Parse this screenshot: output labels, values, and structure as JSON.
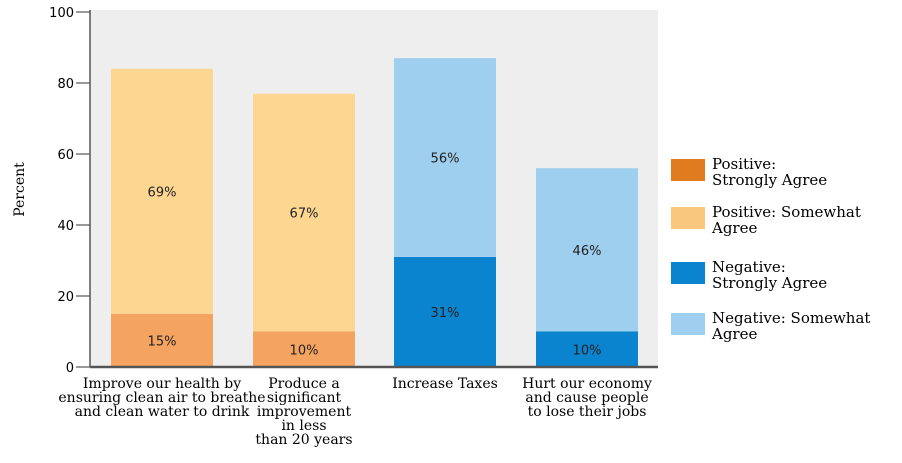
{
  "chart_data": {
    "type": "bar",
    "stacked": true,
    "ylabel": "Percent",
    "ylim": [
      0,
      100
    ],
    "yticks": [
      0,
      20,
      40,
      60,
      80,
      100
    ],
    "categories": [
      [
        "Improve our health by",
        "ensuring clean air to breathe",
        "and clean water to drink"
      ],
      [
        "Produce a",
        "significant",
        "improvement",
        "in less",
        "than 20 years"
      ],
      [
        "Increase Taxes"
      ],
      [
        "Hurt our economy",
        "and cause people",
        "to lose their jobs"
      ]
    ],
    "series": [
      {
        "name": "Positive: Strongly Agree",
        "legend_lines": [
          "Positive:",
          "Strongly Agree"
        ],
        "color": "#f4a460",
        "swatch_color": "#e07b1f",
        "values": [
          15,
          10,
          0,
          0
        ],
        "labels": [
          "15%",
          "10%",
          "",
          ""
        ]
      },
      {
        "name": "Positive: Somewhat Agree",
        "legend_lines": [
          "Positive: Somewhat",
          "Agree"
        ],
        "color": "#fdd792",
        "swatch_color": "#fbc67e",
        "values": [
          69,
          67,
          0,
          0
        ],
        "labels": [
          "69%",
          "67%",
          "",
          ""
        ]
      },
      {
        "name": "Negative: Strongly Agree",
        "legend_lines": [
          "Negative:",
          "Strongly Agree"
        ],
        "color": "#0b84cf",
        "swatch_color": "#0b84cf",
        "values": [
          0,
          0,
          31,
          10
        ],
        "labels": [
          "",
          "",
          "31%",
          "10%"
        ]
      },
      {
        "name": "Negative: Somewhat Agree",
        "legend_lines": [
          "Negative: Somewhat",
          "Agree"
        ],
        "color": "#9fcfee",
        "swatch_color": "#9fcfee",
        "values": [
          0,
          0,
          56,
          46
        ],
        "labels": [
          "",
          "",
          "56%",
          "46%"
        ]
      }
    ],
    "grid": false,
    "legend_position": "right",
    "plot_background": "#eeeeee"
  }
}
